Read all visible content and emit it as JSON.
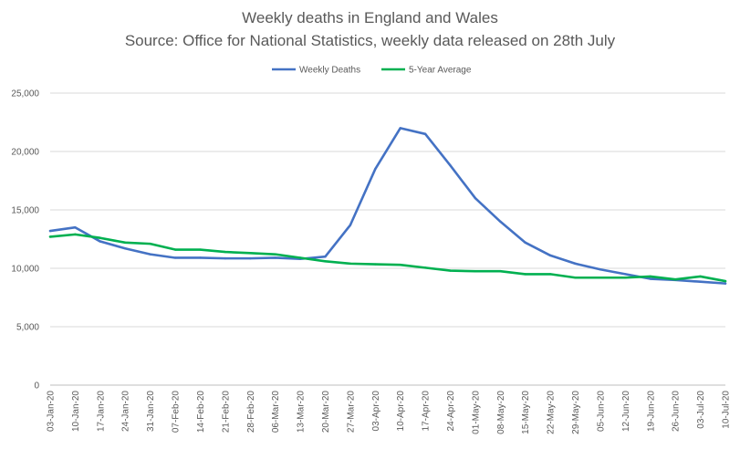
{
  "chart_data": {
    "type": "line",
    "title": "Weekly deaths in England and Wales",
    "subtitle": "Source: Office for National Statistics, weekly data released on 28th July",
    "xlabel": "",
    "ylabel": "",
    "ylim": [
      0,
      25000
    ],
    "yticks": [
      "0",
      "5,000",
      "10,000",
      "15,000",
      "20,000",
      "25,000"
    ],
    "ytick_values": [
      0,
      5000,
      10000,
      15000,
      20000,
      25000
    ],
    "grid": true,
    "legend_position": "top",
    "x": [
      "03-Jan-20",
      "10-Jan-20",
      "17-Jan-20",
      "24-Jan-20",
      "31-Jan-20",
      "07-Feb-20",
      "14-Feb-20",
      "21-Feb-20",
      "28-Feb-20",
      "06-Mar-20",
      "13-Mar-20",
      "20-Mar-20",
      "27-Mar-20",
      "03-Apr-20",
      "10-Apr-20",
      "17-Apr-20",
      "24-Apr-20",
      "01-May-20",
      "08-May-20",
      "15-May-20",
      "22-May-20",
      "29-May-20",
      "05-Jun-20",
      "12-Jun-20",
      "19-Jun-20",
      "26-Jun-20",
      "03-Jul-20",
      "10-Jul-20"
    ],
    "series": [
      {
        "name": "Weekly Deaths",
        "color": "#4472c4",
        "values": [
          13200,
          13500,
          12300,
          11700,
          11200,
          10900,
          10900,
          10850,
          10850,
          10900,
          10800,
          11000,
          13700,
          18500,
          22000,
          21500,
          18800,
          16000,
          14000,
          12200,
          11100,
          10400,
          9900,
          9500,
          9100,
          9000,
          8850,
          8700
        ]
      },
      {
        "name": "5-Year Average",
        "color": "#00b050",
        "values": [
          12700,
          12900,
          12600,
          12200,
          12100,
          11600,
          11600,
          11400,
          11300,
          11200,
          10900,
          10600,
          10400,
          10350,
          10300,
          10050,
          9800,
          9750,
          9750,
          9500,
          9500,
          9200,
          9200,
          9200,
          9300,
          9050,
          9300,
          8900
        ]
      }
    ]
  }
}
